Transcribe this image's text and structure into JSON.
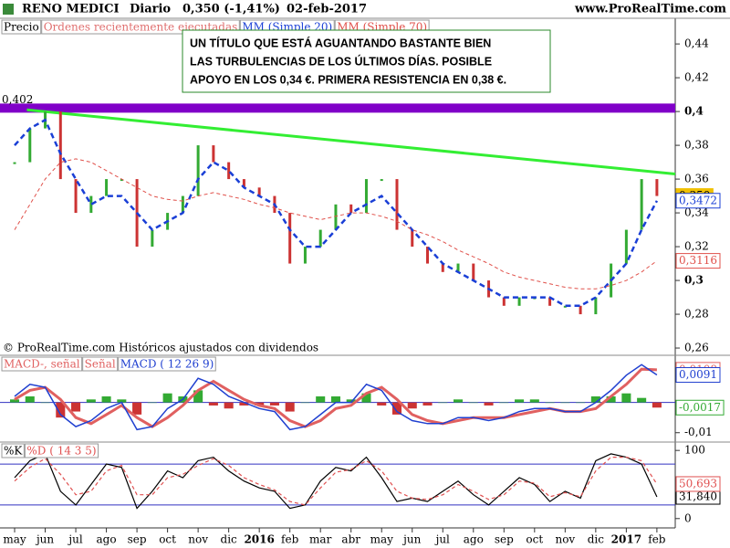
{
  "header": {
    "title": "RENO MEDICI",
    "period": "Diario",
    "last": "0,350 (-1,41%)",
    "date": "02-feb-2017",
    "source": "www.ProRealTime.com"
  },
  "chart_data": [
    {
      "type": "price",
      "x": [
        0,
        0.5,
        1,
        1.5,
        2,
        2.5,
        3,
        3.5,
        4,
        4.5,
        5,
        5.5,
        6,
        6.5,
        7,
        7.5,
        8,
        8.5,
        9,
        9.5,
        10,
        10.5,
        11,
        11.5,
        12,
        12.5,
        13,
        13.5,
        14,
        14.5,
        15,
        15.5,
        16,
        16.5,
        17,
        17.5,
        18,
        18.5,
        19,
        19.5,
        20,
        20.5,
        21
      ],
      "xlim": [
        -0.478,
        21.6
      ],
      "xticks": [
        {
          "value": 0,
          "label": "may"
        },
        {
          "value": 1,
          "label": "jun"
        },
        {
          "value": 2,
          "label": "jul"
        },
        {
          "value": 3,
          "label": "ago"
        },
        {
          "value": 4,
          "label": "sep"
        },
        {
          "value": 5,
          "label": "oct"
        },
        {
          "value": 6,
          "label": "nov"
        },
        {
          "value": 7,
          "label": "dic"
        },
        {
          "value": 8,
          "label": "2016",
          "bold": true
        },
        {
          "value": 9,
          "label": "feb"
        },
        {
          "value": 10,
          "label": "mar"
        },
        {
          "value": 11,
          "label": "abr"
        },
        {
          "value": 12,
          "label": "may"
        },
        {
          "value": 13,
          "label": "jun"
        },
        {
          "value": 14,
          "label": "jul"
        },
        {
          "value": 15,
          "label": "ago"
        },
        {
          "value": 16,
          "label": "sep"
        },
        {
          "value": 17,
          "label": "oct"
        },
        {
          "value": 18,
          "label": "nov"
        },
        {
          "value": 19,
          "label": "dic"
        },
        {
          "value": 20,
          "label": "2017",
          "bold": true
        },
        {
          "value": 21,
          "label": "feb"
        }
      ],
      "ylim": [
        0.2557,
        0.4552
      ],
      "yticks": [
        {
          "value": 0.26,
          "label": "0,26"
        },
        {
          "value": 0.28,
          "label": "0,28"
        },
        {
          "value": 0.3,
          "label": "0,3",
          "bold": true
        },
        {
          "value": 0.32,
          "label": "0,32"
        },
        {
          "value": 0.34,
          "label": "0,34"
        },
        {
          "value": 0.36,
          "label": "0,36"
        },
        {
          "value": 0.38,
          "label": "0,38"
        },
        {
          "value": 0.4,
          "label": "0,4",
          "bold": true
        },
        {
          "value": 0.42,
          "label": "0,42"
        },
        {
          "value": 0.44,
          "label": "0,44"
        }
      ],
      "series": [
        {
          "name": "Precio",
          "style": "bars",
          "color": "#33aa33",
          "neg_color": "#cc3333",
          "tag_color": "#f0c000",
          "last_label": "0,350",
          "values": [
            0.37,
            0.39,
            0.4,
            0.36,
            0.34,
            0.35,
            0.36,
            0.36,
            0.32,
            0.33,
            0.34,
            0.35,
            0.38,
            0.37,
            0.36,
            0.355,
            0.35,
            0.34,
            0.31,
            0.32,
            0.33,
            0.345,
            0.34,
            0.36,
            0.36,
            0.33,
            0.32,
            0.31,
            0.305,
            0.31,
            0.3,
            0.29,
            0.285,
            0.29,
            0.29,
            0.285,
            0.285,
            0.28,
            0.29,
            0.31,
            0.33,
            0.36,
            0.35
          ]
        },
        {
          "name": "MM (Simple 20)",
          "style": "dashed",
          "color": "#1a3fd6",
          "width": 2.5,
          "last_label": "0,3472",
          "values": [
            0.38,
            0.39,
            0.395,
            0.375,
            0.36,
            0.345,
            0.35,
            0.35,
            0.34,
            0.33,
            0.335,
            0.34,
            0.36,
            0.37,
            0.365,
            0.355,
            0.35,
            0.345,
            0.33,
            0.32,
            0.32,
            0.33,
            0.34,
            0.345,
            0.35,
            0.34,
            0.33,
            0.32,
            0.31,
            0.305,
            0.3,
            0.295,
            0.29,
            0.29,
            0.29,
            0.29,
            0.285,
            0.285,
            0.29,
            0.3,
            0.31,
            0.33,
            0.3472
          ]
        },
        {
          "name": "MM (Simple 70)",
          "style": "dashed",
          "color": "#e0504a",
          "width": 1,
          "last_label": "0,3116",
          "values": [
            0.33,
            0.345,
            0.36,
            0.37,
            0.372,
            0.37,
            0.365,
            0.36,
            0.355,
            0.35,
            0.348,
            0.347,
            0.35,
            0.352,
            0.35,
            0.348,
            0.345,
            0.343,
            0.34,
            0.338,
            0.336,
            0.338,
            0.34,
            0.34,
            0.338,
            0.335,
            0.33,
            0.327,
            0.323,
            0.318,
            0.314,
            0.31,
            0.305,
            0.302,
            0.3,
            0.298,
            0.296,
            0.295,
            0.295,
            0.297,
            0.3,
            0.305,
            0.3116
          ]
        }
      ],
      "extra_legend": [
        {
          "text": "Ordenes recientemente ejecutadas",
          "color": "#e07070"
        }
      ],
      "hline": {
        "value": 0.402,
        "label": "0,402",
        "color": "#8000c8"
      },
      "trendline": {
        "x": [
          0.4,
          21.6
        ],
        "y": [
          0.401,
          0.363
        ],
        "color": "#33ee33"
      },
      "annotation": [
        "UN TÍTULO QUE ESTÁ AGUANTANDO BASTANTE BIEN",
        "LAS TURBULENCIAS DE LOS ÚLTIMOS DÍAS. POSIBLE",
        "APOYO EN LOS 0,34 €. PRIMERA RESISTENCIA EN 0,38 €."
      ],
      "footnote": "© ProRealTime.com  Históricos ajustados con dividendos"
    },
    {
      "type": "macd",
      "ylim": [
        -0.0131,
        0.0156
      ],
      "yticks": [
        {
          "value": -0.01,
          "label": "-0,01"
        }
      ],
      "series": [
        {
          "name": "MACD-, señal",
          "style": "histogram",
          "color": "#33aa33",
          "neg_color": "#cc3333",
          "last_label": "-0,0017",
          "values": [
            0.001,
            0.002,
            0,
            -0.005,
            -0.003,
            0.001,
            0.002,
            0.001,
            -0.004,
            0,
            0.003,
            0.002,
            0.004,
            -0.001,
            -0.002,
            -0.001,
            -0.001,
            -0.001,
            -0.003,
            0,
            0.002,
            0.002,
            0.001,
            0.003,
            -0.001,
            -0.004,
            -0.002,
            -0.001,
            0,
            0.001,
            0,
            -0.001,
            0,
            0.001,
            0.001,
            0,
            0,
            0,
            0.002,
            0.002,
            0.003,
            0.0015,
            -0.0017
          ]
        },
        {
          "name": "Señal",
          "style": "line",
          "color": "#e06060",
          "width": 3,
          "last_label": "0,0108",
          "values": [
            0.001,
            0.004,
            0.005,
            0.001,
            -0.005,
            -0.007,
            -0.004,
            -0.001,
            -0.005,
            -0.008,
            -0.005,
            -0.001,
            0.004,
            0.007,
            0.004,
            0.001,
            -0.001,
            -0.002,
            -0.006,
            -0.008,
            -0.006,
            -0.002,
            -0.001,
            0.003,
            0.005,
            0.001,
            -0.004,
            -0.006,
            -0.007,
            -0.006,
            -0.005,
            -0.005,
            -0.005,
            -0.004,
            -0.003,
            -0.002,
            -0.003,
            -0.003,
            -0.002,
            0.002,
            0.006,
            0.011,
            0.0108
          ]
        },
        {
          "name": "MACD ( 12 26 9)",
          "style": "line",
          "color": "#2040d0",
          "width": 1.5,
          "last_label": "0,0091",
          "values": [
            0.002,
            0.006,
            0.005,
            -0.004,
            -0.008,
            -0.006,
            -0.002,
            0,
            -0.009,
            -0.008,
            -0.002,
            0.001,
            0.008,
            0.006,
            0.002,
            0,
            -0.002,
            -0.003,
            -0.009,
            -0.008,
            -0.004,
            0,
            0,
            0.006,
            0.004,
            -0.003,
            -0.006,
            -0.007,
            -0.007,
            -0.005,
            -0.005,
            -0.006,
            -0.005,
            -0.003,
            -0.002,
            -0.002,
            -0.003,
            -0.003,
            0,
            0.004,
            0.009,
            0.0125,
            0.0091
          ]
        }
      ]
    },
    {
      "type": "stochastic",
      "ylim": [
        -13.7,
        112.3
      ],
      "yticks": [
        0,
        100
      ],
      "levels": [
        20,
        80
      ],
      "series": [
        {
          "name": "%K",
          "style": "line",
          "color": "#000000",
          "width": 1.2,
          "last_label": "31,840",
          "values": [
            60,
            85,
            95,
            40,
            20,
            50,
            80,
            75,
            15,
            40,
            70,
            60,
            85,
            90,
            70,
            55,
            45,
            40,
            15,
            20,
            55,
            75,
            70,
            90,
            60,
            25,
            30,
            25,
            40,
            55,
            35,
            20,
            40,
            60,
            50,
            25,
            40,
            30,
            85,
            95,
            90,
            80,
            31.84
          ]
        },
        {
          "name": "%D ( 14 3 5)",
          "style": "dashed",
          "color": "#e05050",
          "width": 1.2,
          "last_label": "50,693",
          "values": [
            55,
            75,
            88,
            65,
            35,
            40,
            70,
            78,
            35,
            35,
            60,
            65,
            78,
            88,
            78,
            60,
            50,
            42,
            25,
            20,
            45,
            68,
            72,
            85,
            70,
            40,
            30,
            28,
            35,
            50,
            40,
            28,
            35,
            55,
            52,
            32,
            38,
            32,
            70,
            90,
            90,
            85,
            50.693
          ]
        }
      ]
    }
  ]
}
